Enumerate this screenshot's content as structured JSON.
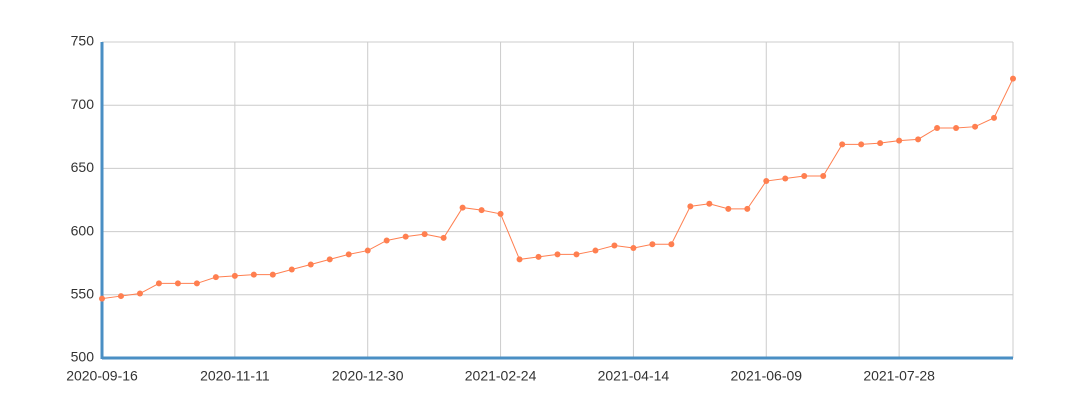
{
  "chart_data": {
    "type": "line",
    "color": "#ff7f50",
    "categories": [
      "2020-09-16",
      null,
      null,
      null,
      null,
      null,
      null,
      "2020-11-11",
      null,
      null,
      null,
      null,
      null,
      null,
      "2020-12-30",
      null,
      null,
      null,
      null,
      null,
      null,
      "2021-02-24",
      null,
      null,
      null,
      null,
      null,
      null,
      "2021-04-14",
      null,
      null,
      null,
      null,
      null,
      null,
      "2021-06-09",
      null,
      null,
      null,
      null,
      null,
      null,
      "2021-07-28",
      null,
      null,
      null,
      null,
      null,
      null
    ],
    "values": [
      547,
      549,
      551,
      559,
      559,
      559,
      564,
      565,
      566,
      566,
      570,
      574,
      578,
      582,
      585,
      593,
      596,
      598,
      595,
      619,
      617,
      614,
      578,
      580,
      582,
      582,
      585,
      589,
      587,
      590,
      590,
      620,
      622,
      618,
      618,
      640,
      642,
      644,
      644,
      669,
      669,
      670,
      672,
      673,
      682,
      682,
      683,
      690,
      721
    ],
    "ylim": [
      500,
      750
    ],
    "yticks": [
      500,
      550,
      600,
      650,
      700,
      750
    ],
    "grid": true
  }
}
